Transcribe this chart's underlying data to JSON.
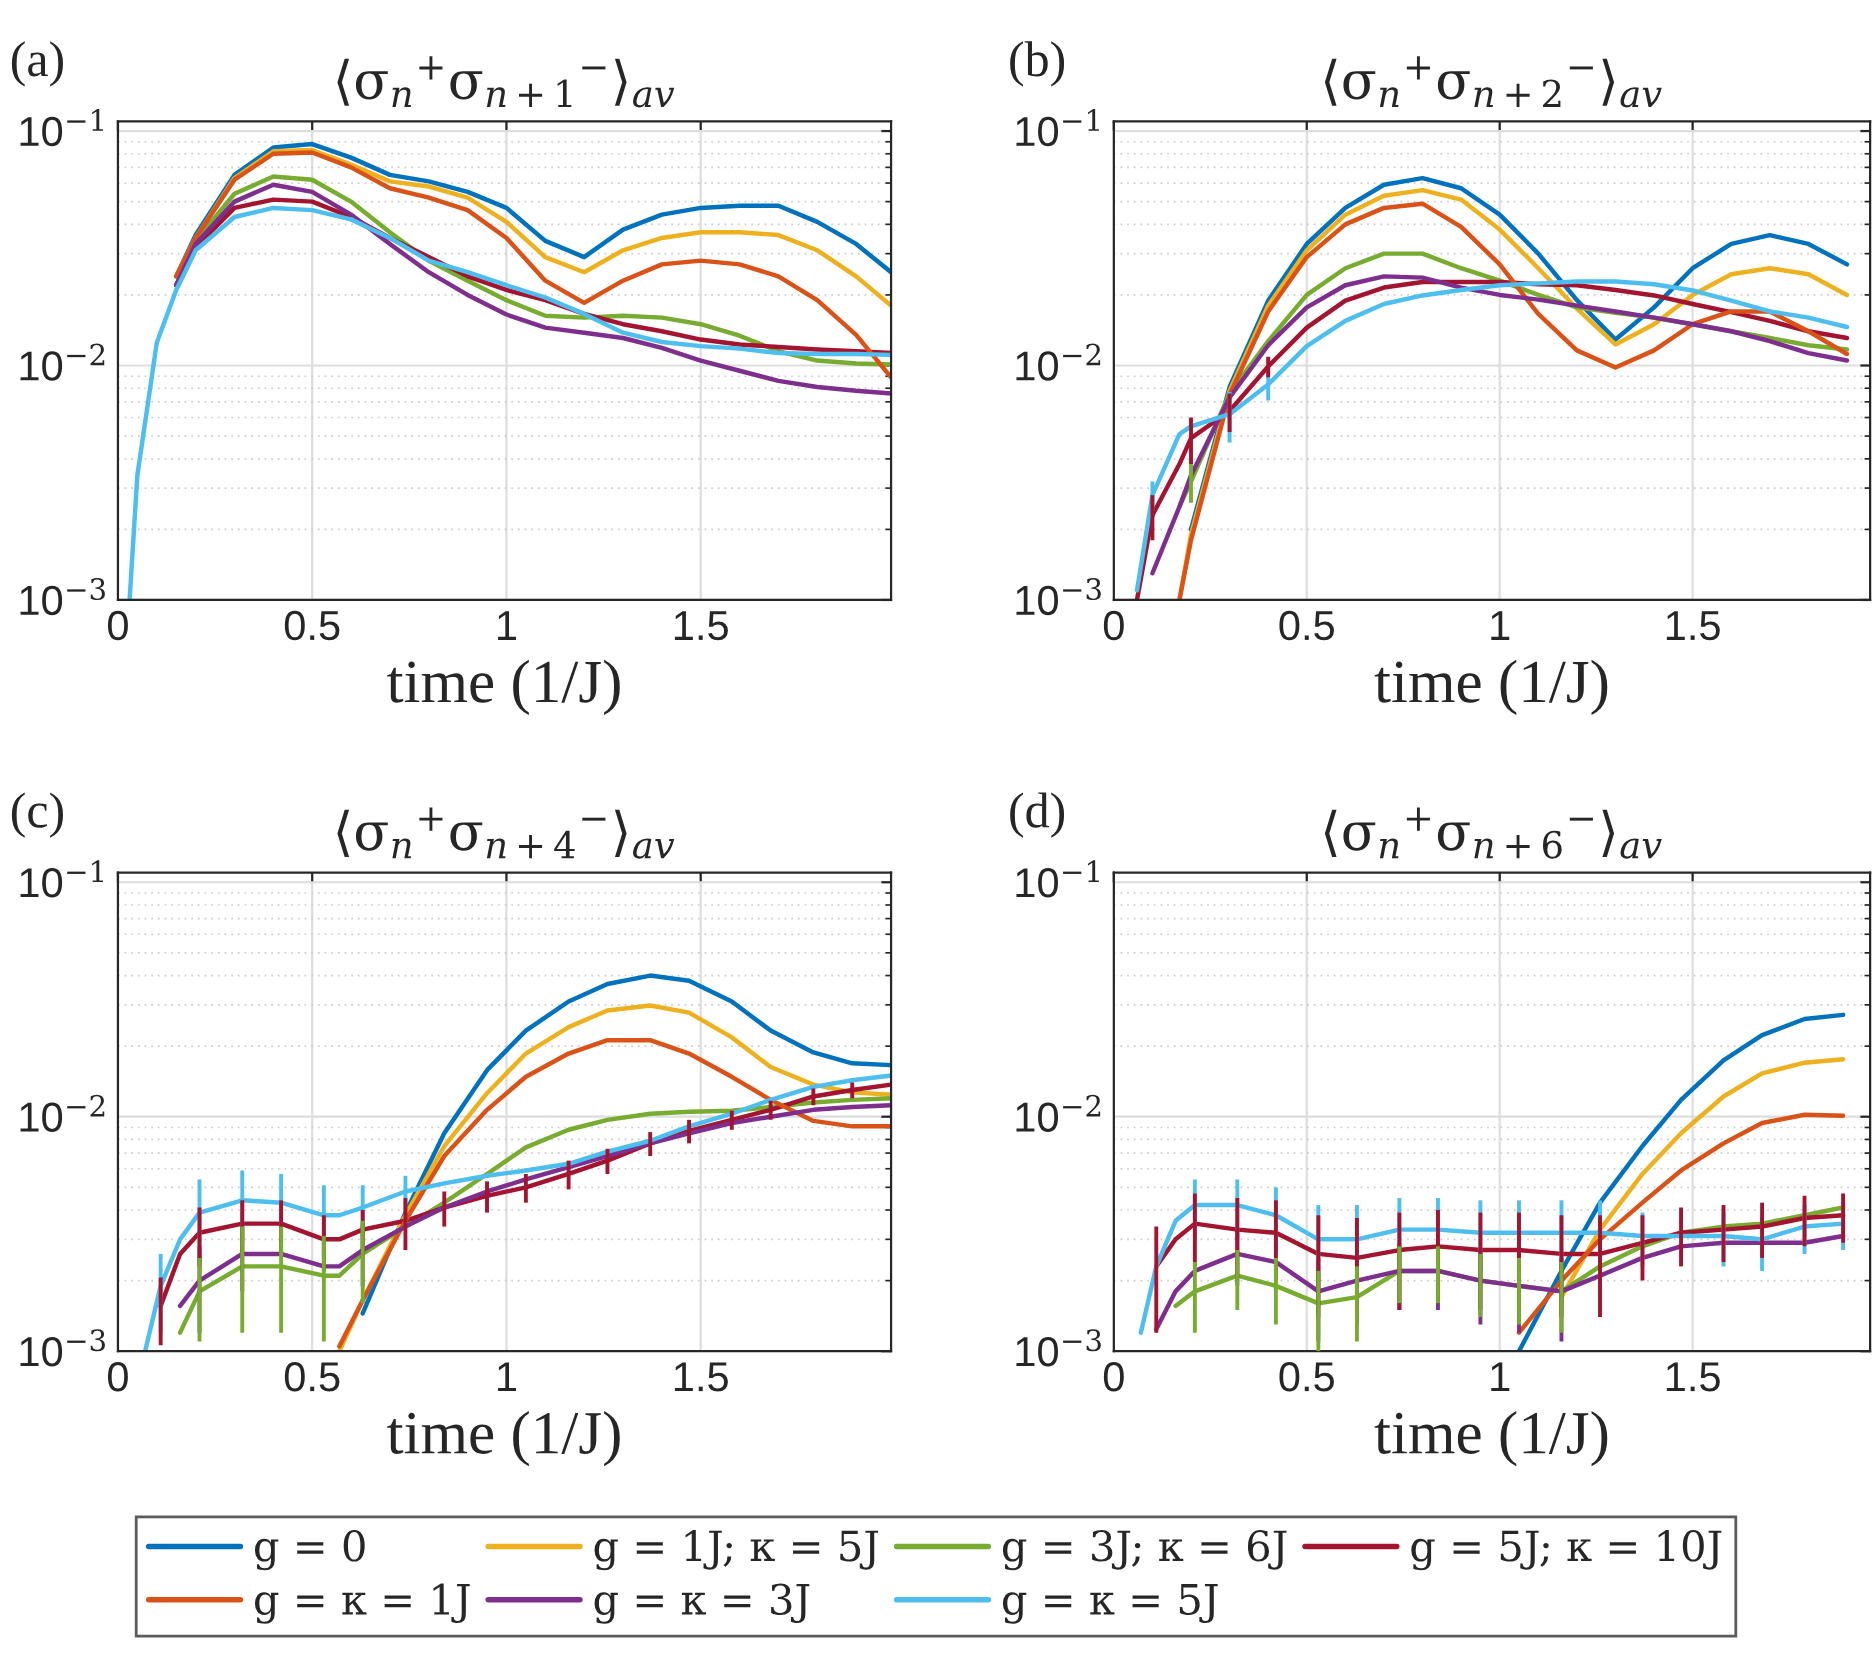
{
  "chart_data": [
    {
      "type": "line",
      "title": "⟨σ$_{n}$$^{+}$σ$_{n+1}$$^{−}$⟩$_{av}$",
      "xlabel": "time (1/J)",
      "annotations": [
        "(a)"
      ],
      "log": "y",
      "grid": true,
      "xlim": [
        0,
        1.99
      ],
      "ylim": [
        0.001,
        0.11
      ],
      "xticks": [
        0,
        0.5,
        1,
        1.5
      ],
      "yticks": [
        {
          "value": 0.001,
          "label": "10$^{−3}$"
        },
        {
          "value": 0.01,
          "label": "10$^{−2}$"
        },
        {
          "value": 0.1,
          "label": "10$^{−1}$"
        }
      ],
      "x": [
        0.03,
        0.05,
        0.1,
        0.15,
        0.2,
        0.3,
        0.4,
        0.5,
        0.6,
        0.7,
        0.8,
        0.9,
        1.0,
        1.1,
        1.2,
        1.3,
        1.4,
        1.5,
        1.6,
        1.7,
        1.8,
        1.9,
        1.99
      ],
      "series": [
        {
          "color": "#0072bd",
          "values": [
            null,
            null,
            null,
            0.024,
            0.036,
            0.065,
            0.085,
            0.088,
            0.077,
            0.065,
            0.061,
            0.055,
            0.047,
            0.034,
            0.029,
            0.038,
            0.044,
            0.047,
            0.048,
            0.048,
            0.041,
            0.033,
            0.025
          ]
        },
        {
          "color": "#edb120",
          "values": [
            null,
            null,
            null,
            0.024,
            0.035,
            0.063,
            0.082,
            0.083,
            0.072,
            0.061,
            0.058,
            0.052,
            0.041,
            0.029,
            0.025,
            0.031,
            0.035,
            0.037,
            0.037,
            0.036,
            0.031,
            0.024,
            0.018
          ]
        },
        {
          "color": "#77ac30",
          "values": [
            null,
            null,
            null,
            0.022,
            0.034,
            0.054,
            0.064,
            0.062,
            0.05,
            0.037,
            0.028,
            0.023,
            0.019,
            0.0163,
            0.016,
            0.0163,
            0.016,
            0.015,
            0.0134,
            0.0115,
            0.0105,
            0.0102,
            0.0101
          ]
        },
        {
          "color": "#a2142f",
          "values": [
            null,
            null,
            null,
            0.022,
            0.032,
            0.047,
            0.051,
            0.05,
            0.043,
            0.035,
            0.029,
            0.024,
            0.021,
            0.019,
            0.0166,
            0.015,
            0.014,
            0.0129,
            0.0123,
            0.012,
            0.0117,
            0.0115,
            0.0113
          ]
        },
        {
          "color": "#d95319",
          "values": [
            null,
            null,
            null,
            0.024,
            0.035,
            0.062,
            0.08,
            0.081,
            0.07,
            0.057,
            0.052,
            0.046,
            0.035,
            0.023,
            0.0185,
            0.023,
            0.027,
            0.028,
            0.027,
            0.024,
            0.019,
            0.0135,
            0.0089
          ]
        },
        {
          "color": "#7e2f8e",
          "values": [
            null,
            null,
            null,
            0.022,
            0.033,
            0.05,
            0.059,
            0.055,
            0.044,
            0.033,
            0.025,
            0.02,
            0.0165,
            0.0145,
            0.0138,
            0.0131,
            0.0119,
            0.0105,
            0.0095,
            0.0086,
            0.0081,
            0.0078,
            0.0076
          ]
        },
        {
          "color": "#4dbeee",
          "values": [
            0.001,
            0.0034,
            0.0125,
            0.021,
            0.031,
            0.043,
            0.047,
            0.046,
            0.042,
            0.035,
            0.028,
            0.025,
            0.022,
            0.0195,
            0.0166,
            0.0138,
            0.0126,
            0.0121,
            0.0118,
            0.0113,
            0.0112,
            0.0112,
            0.0111
          ]
        }
      ]
    },
    {
      "type": "line",
      "title": "⟨σ$_{n}$$^{+}$σ$_{n+2}$$^{−}$⟩$_{av}$",
      "xlabel": "time (1/J)",
      "annotations": [
        "(b)"
      ],
      "log": "y",
      "grid": true,
      "xlim": [
        0,
        1.96
      ],
      "ylim": [
        0.001,
        0.11
      ],
      "xticks": [
        0,
        0.5,
        1,
        1.5
      ],
      "yticks": [
        {
          "value": 0.001,
          "label": "10$^{−3}$"
        },
        {
          "value": 0.01,
          "label": "10$^{−2}$"
        },
        {
          "value": 0.1,
          "label": "10$^{−1}$"
        }
      ],
      "x": [
        0.06,
        0.1,
        0.17,
        0.2,
        0.3,
        0.4,
        0.5,
        0.6,
        0.7,
        0.8,
        0.9,
        1.0,
        1.1,
        1.2,
        1.3,
        1.4,
        1.5,
        1.6,
        1.7,
        1.8,
        1.9
      ],
      "series": [
        {
          "color": "#0072bd",
          "values": [
            null,
            null,
            null,
            0.002,
            0.0081,
            0.0189,
            0.033,
            0.047,
            0.059,
            0.063,
            0.057,
            0.044,
            0.03,
            0.019,
            0.0129,
            0.0177,
            0.026,
            0.033,
            0.036,
            0.033,
            0.027
          ]
        },
        {
          "color": "#edb120",
          "values": [
            null,
            null,
            0.001,
            0.0019,
            0.0078,
            0.018,
            0.031,
            0.044,
            0.053,
            0.056,
            0.051,
            0.038,
            0.026,
            0.0175,
            0.0123,
            0.015,
            0.02,
            0.0245,
            0.026,
            0.0245,
            0.02
          ]
        },
        {
          "color": "#77ac30",
          "values": [
            null,
            null,
            0.0025,
            0.0032,
            0.0076,
            0.0127,
            0.02,
            0.026,
            0.03,
            0.03,
            0.026,
            0.023,
            0.02,
            0.0177,
            0.0168,
            0.016,
            0.015,
            0.014,
            0.0131,
            0.0122,
            0.0117
          ],
          "errors": [
            null,
            null,
            null,
            0.0006,
            null,
            null,
            null,
            null,
            null,
            null,
            null,
            null,
            null,
            null,
            null,
            null,
            null,
            null,
            null,
            null,
            null
          ]
        },
        {
          "color": "#a2142f",
          "values": [
            0.001,
            0.0023,
            0.0038,
            0.0049,
            0.0064,
            0.0099,
            0.0145,
            0.0189,
            0.0215,
            0.0227,
            0.0227,
            0.0227,
            0.0222,
            0.022,
            0.021,
            0.0199,
            0.0183,
            0.0169,
            0.0155,
            0.014,
            0.0131
          ],
          "errors": [
            null,
            0.0005,
            null,
            0.0011,
            0.0012,
            0.001,
            null,
            null,
            null,
            null,
            null,
            null,
            null,
            null,
            null,
            null,
            null,
            null,
            null,
            null,
            null
          ]
        },
        {
          "color": "#d95319",
          "values": [
            null,
            null,
            0.001,
            0.0018,
            0.0075,
            0.017,
            0.029,
            0.04,
            0.047,
            0.049,
            0.039,
            0.027,
            0.0166,
            0.0116,
            0.0098,
            0.0116,
            0.015,
            0.017,
            0.017,
            0.014,
            0.0112
          ]
        },
        {
          "color": "#7e2f8e",
          "values": [
            null,
            0.0013,
            0.0025,
            0.0034,
            0.0073,
            0.0122,
            0.0177,
            0.022,
            0.024,
            0.0237,
            0.0215,
            0.02,
            0.0191,
            0.018,
            0.017,
            0.016,
            0.015,
            0.014,
            0.0127,
            0.0113,
            0.0105
          ]
        },
        {
          "color": "#4dbeee",
          "values": [
            0.0011,
            0.0028,
            0.0051,
            0.0055,
            0.0062,
            0.0083,
            0.0121,
            0.0155,
            0.0183,
            0.0199,
            0.021,
            0.022,
            0.0224,
            0.0228,
            0.0228,
            0.0222,
            0.0209,
            0.0189,
            0.017,
            0.016,
            0.0146
          ],
          "errors": [
            null,
            0.0004,
            null,
            null,
            0.0015,
            0.0012,
            null,
            null,
            null,
            null,
            null,
            null,
            null,
            null,
            null,
            null,
            null,
            null,
            null,
            null,
            null
          ]
        }
      ]
    },
    {
      "type": "line",
      "title": "⟨σ$_{n}$$^{+}$σ$_{n+4}$$^{−}$⟩$_{av}$",
      "xlabel": "time (1/J)",
      "annotations": [
        "(c)"
      ],
      "log": "y",
      "grid": true,
      "xlim": [
        0,
        1.99
      ],
      "ylim": [
        0.001,
        0.11
      ],
      "xticks": [
        0,
        0.5,
        1,
        1.5
      ],
      "yticks": [
        {
          "value": 0.001,
          "label": "10$^{−3}$"
        },
        {
          "value": 0.01,
          "label": "10$^{−2}$"
        },
        {
          "value": 0.1,
          "label": "10$^{−1}$"
        }
      ],
      "x": [
        0.07,
        0.11,
        0.16,
        0.21,
        0.32,
        0.42,
        0.53,
        0.57,
        0.63,
        0.74,
        0.84,
        0.95,
        1.05,
        1.16,
        1.26,
        1.37,
        1.47,
        1.58,
        1.68,
        1.79,
        1.89,
        1.99
      ],
      "series": [
        {
          "color": "#0072bd",
          "values": [
            null,
            null,
            null,
            null,
            null,
            null,
            null,
            null,
            0.00145,
            0.0039,
            0.0085,
            0.0158,
            0.0233,
            0.031,
            0.0368,
            0.04,
            0.038,
            0.031,
            0.0233,
            0.0188,
            0.0169,
            0.0166
          ]
        },
        {
          "color": "#edb120",
          "values": [
            null,
            null,
            null,
            null,
            null,
            null,
            null,
            0.001,
            0.00165,
            0.0038,
            0.0075,
            0.0126,
            0.0186,
            0.0241,
            0.0284,
            0.0298,
            0.0278,
            0.0218,
            0.0163,
            0.0137,
            0.0127,
            0.0124
          ]
        },
        {
          "color": "#77ac30",
          "values": [
            null,
            null,
            0.0012,
            0.0018,
            0.0023,
            0.0023,
            0.0021,
            0.0021,
            0.0026,
            0.0034,
            0.0043,
            0.0057,
            0.0074,
            0.0088,
            0.0097,
            0.0103,
            0.0105,
            0.0106,
            0.011,
            0.0115,
            0.0118,
            0.012
          ],
          "errors": [
            null,
            null,
            null,
            0.0007,
            0.0011,
            0.0011,
            0.001,
            null,
            0.001,
            null,
            null,
            null,
            null,
            null,
            null,
            null,
            null,
            null,
            null,
            null,
            null,
            null
          ]
        },
        {
          "color": "#a2142f",
          "values": [
            null,
            0.00156,
            0.0026,
            0.0032,
            0.0035,
            0.0035,
            0.003,
            0.003,
            0.0033,
            0.0036,
            0.0041,
            0.0046,
            0.005,
            0.0057,
            0.0065,
            0.0077,
            0.0087,
            0.0097,
            0.0107,
            0.0122,
            0.013,
            0.0137
          ],
          "errors": [
            null,
            0.0005,
            null,
            0.0009,
            0.0009,
            0.0009,
            0.0008,
            null,
            0.0007,
            0.0009,
            0.0007,
            0.0007,
            0.0007,
            0.0008,
            0.0008,
            0.0009,
            0.001,
            0.0009,
            0.001,
            0.001,
            0.001,
            null
          ]
        },
        {
          "color": "#d95319",
          "values": [
            null,
            null,
            null,
            null,
            null,
            null,
            null,
            0.00105,
            0.00165,
            0.0036,
            0.0068,
            0.0107,
            0.0148,
            0.0186,
            0.0212,
            0.0212,
            0.0186,
            0.0148,
            0.0118,
            0.0096,
            0.0091,
            0.0091
          ]
        },
        {
          "color": "#7e2f8e",
          "values": [
            null,
            null,
            0.00156,
            0.002,
            0.0026,
            0.0026,
            0.0023,
            0.0023,
            0.0027,
            0.0034,
            0.0041,
            0.0048,
            0.0054,
            0.0061,
            0.0068,
            0.0077,
            0.0085,
            0.0094,
            0.01,
            0.0107,
            0.011,
            0.0112
          ],
          "errors": [
            null,
            null,
            null,
            0.0008,
            0.0008,
            null,
            null,
            null,
            0.0008,
            null,
            null,
            null,
            null,
            null,
            null,
            null,
            null,
            null,
            null,
            null,
            null,
            null
          ]
        },
        {
          "color": "#4dbeee",
          "values": [
            0.001,
            0.0019,
            0.003,
            0.0039,
            0.0044,
            0.0043,
            0.0038,
            0.0038,
            0.0041,
            0.0048,
            0.0052,
            0.0056,
            0.0059,
            0.0063,
            0.0071,
            0.0079,
            0.0091,
            0.0103,
            0.0118,
            0.0134,
            0.0143,
            0.015
          ],
          "errors": [
            null,
            0.0007,
            null,
            0.0015,
            0.0015,
            0.0014,
            0.0013,
            null,
            0.001,
            0.0008,
            null,
            null,
            null,
            null,
            null,
            null,
            null,
            null,
            null,
            null,
            null,
            null
          ]
        }
      ]
    },
    {
      "type": "line",
      "title": "⟨σ$_{n}$$^{+}$σ$_{n+6}$$^{−}$⟩$_{av}$",
      "xlabel": "time (1/J)",
      "annotations": [
        "(d)"
      ],
      "log": "y",
      "grid": true,
      "legend": "bottom",
      "xlim": [
        0,
        1.96
      ],
      "ylim": [
        0.001,
        0.11
      ],
      "xticks": [
        0,
        0.5,
        1,
        1.5
      ],
      "yticks": [
        {
          "value": 0.001,
          "label": "10$^{−3}$"
        },
        {
          "value": 0.01,
          "label": "10$^{−2}$"
        },
        {
          "value": 0.1,
          "label": "10$^{−1}$"
        }
      ],
      "x": [
        0.07,
        0.11,
        0.16,
        0.21,
        0.32,
        0.42,
        0.53,
        0.63,
        0.74,
        0.84,
        0.95,
        1.05,
        1.16,
        1.26,
        1.37,
        1.47,
        1.58,
        1.68,
        1.79,
        1.89
      ],
      "series": [
        {
          "name": "g = 0",
          "color": "#0072bd",
          "values": [
            null,
            null,
            null,
            null,
            null,
            null,
            null,
            null,
            null,
            null,
            null,
            0.001,
            0.0022,
            0.0043,
            0.0075,
            0.0118,
            0.0174,
            0.0223,
            0.0261,
            0.0272
          ]
        },
        {
          "name": "g = 1J; κ = 5J",
          "color": "#edb120",
          "values": [
            null,
            null,
            null,
            null,
            null,
            null,
            null,
            null,
            null,
            null,
            null,
            null,
            0.0017,
            0.0033,
            0.0057,
            0.0085,
            0.0122,
            0.0153,
            0.017,
            0.0176
          ]
        },
        {
          "name": "g = 3J; κ = 6J",
          "color": "#77ac30",
          "values": [
            null,
            null,
            0.00156,
            0.0018,
            0.0021,
            0.0019,
            0.0016,
            0.0017,
            0.0022,
            0.0022,
            0.002,
            0.0019,
            0.0018,
            0.0023,
            0.0028,
            0.0032,
            0.0034,
            0.0035,
            0.0038,
            0.0041
          ],
          "errors": [
            null,
            null,
            null,
            0.0006,
            0.0006,
            0.0006,
            0.0006,
            0.0006,
            0.0006,
            0.0006,
            0.0006,
            0.0006,
            0.0006,
            null,
            null,
            null,
            null,
            null,
            null,
            null
          ]
        },
        {
          "name": "g = 5J; κ = 10J",
          "color": "#a2142f",
          "values": [
            null,
            0.0023,
            0.003,
            0.0035,
            0.0033,
            0.0032,
            0.0026,
            0.0025,
            0.0027,
            0.0028,
            0.0027,
            0.0027,
            0.0026,
            0.0026,
            0.0029,
            0.0032,
            0.0033,
            0.0034,
            0.0037,
            0.0038
          ],
          "errors": [
            null,
            0.0011,
            null,
            0.0012,
            0.0012,
            0.0012,
            0.0012,
            0.0012,
            0.0012,
            0.0012,
            0.0012,
            0.0012,
            0.0012,
            0.0012,
            0.0009,
            0.0009,
            0.0009,
            0.0009,
            0.0009,
            0.0009
          ]
        },
        {
          "name": "g = κ = 1J",
          "color": "#d95319",
          "values": [
            null,
            null,
            null,
            null,
            null,
            null,
            null,
            null,
            null,
            null,
            null,
            0.0012,
            0.002,
            0.003,
            0.0043,
            0.0059,
            0.0077,
            0.0094,
            0.0102,
            0.0101
          ]
        },
        {
          "name": "g = κ = 3J",
          "color": "#7e2f8e",
          "values": [
            null,
            0.00124,
            0.0018,
            0.0022,
            0.0026,
            0.0024,
            0.0018,
            0.002,
            0.0022,
            0.0022,
            0.002,
            0.0019,
            0.0018,
            0.0021,
            0.0025,
            0.0028,
            0.0029,
            0.0029,
            0.0029,
            0.0031
          ],
          "errors": [
            null,
            null,
            null,
            null,
            0.0007,
            null,
            0.0007,
            null,
            0.0007,
            0.0007,
            0.0007,
            0.0007,
            0.0007,
            null,
            null,
            null,
            null,
            null,
            null,
            null
          ]
        },
        {
          "name": "g = κ = 5J",
          "color": "#4dbeee",
          "values": [
            0.0012,
            0.0023,
            0.0036,
            0.0042,
            0.0042,
            0.0038,
            0.003,
            0.003,
            0.0033,
            0.0033,
            0.0032,
            0.0032,
            0.0032,
            0.0032,
            0.0031,
            0.0031,
            0.0031,
            0.003,
            0.0034,
            0.0035
          ],
          "errors": [
            null,
            null,
            null,
            0.0012,
            0.0012,
            0.0012,
            0.0012,
            0.0012,
            0.0012,
            0.0012,
            0.0012,
            0.0012,
            0.0012,
            0.0012,
            0.0008,
            null,
            0.0008,
            0.0008,
            0.0008,
            0.0008
          ]
        }
      ]
    }
  ]
}
